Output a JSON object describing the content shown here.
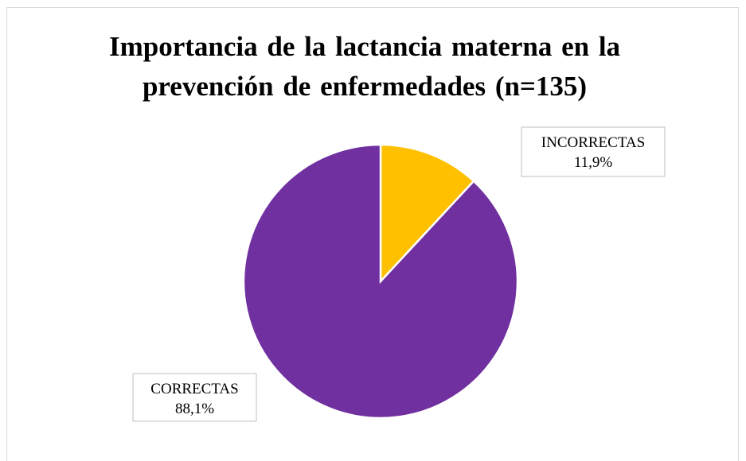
{
  "chart_data": {
    "type": "pie",
    "title": "Importancia de la lactancia materna en la prevención de enfermedades (n=135)",
    "categories": [
      "INCORRECTAS",
      "CORRECTAS"
    ],
    "values": [
      11.9,
      88.1
    ],
    "value_labels": [
      "11,9%",
      "88,1%"
    ],
    "colors": [
      "#FFC000",
      "#7030A0"
    ]
  }
}
